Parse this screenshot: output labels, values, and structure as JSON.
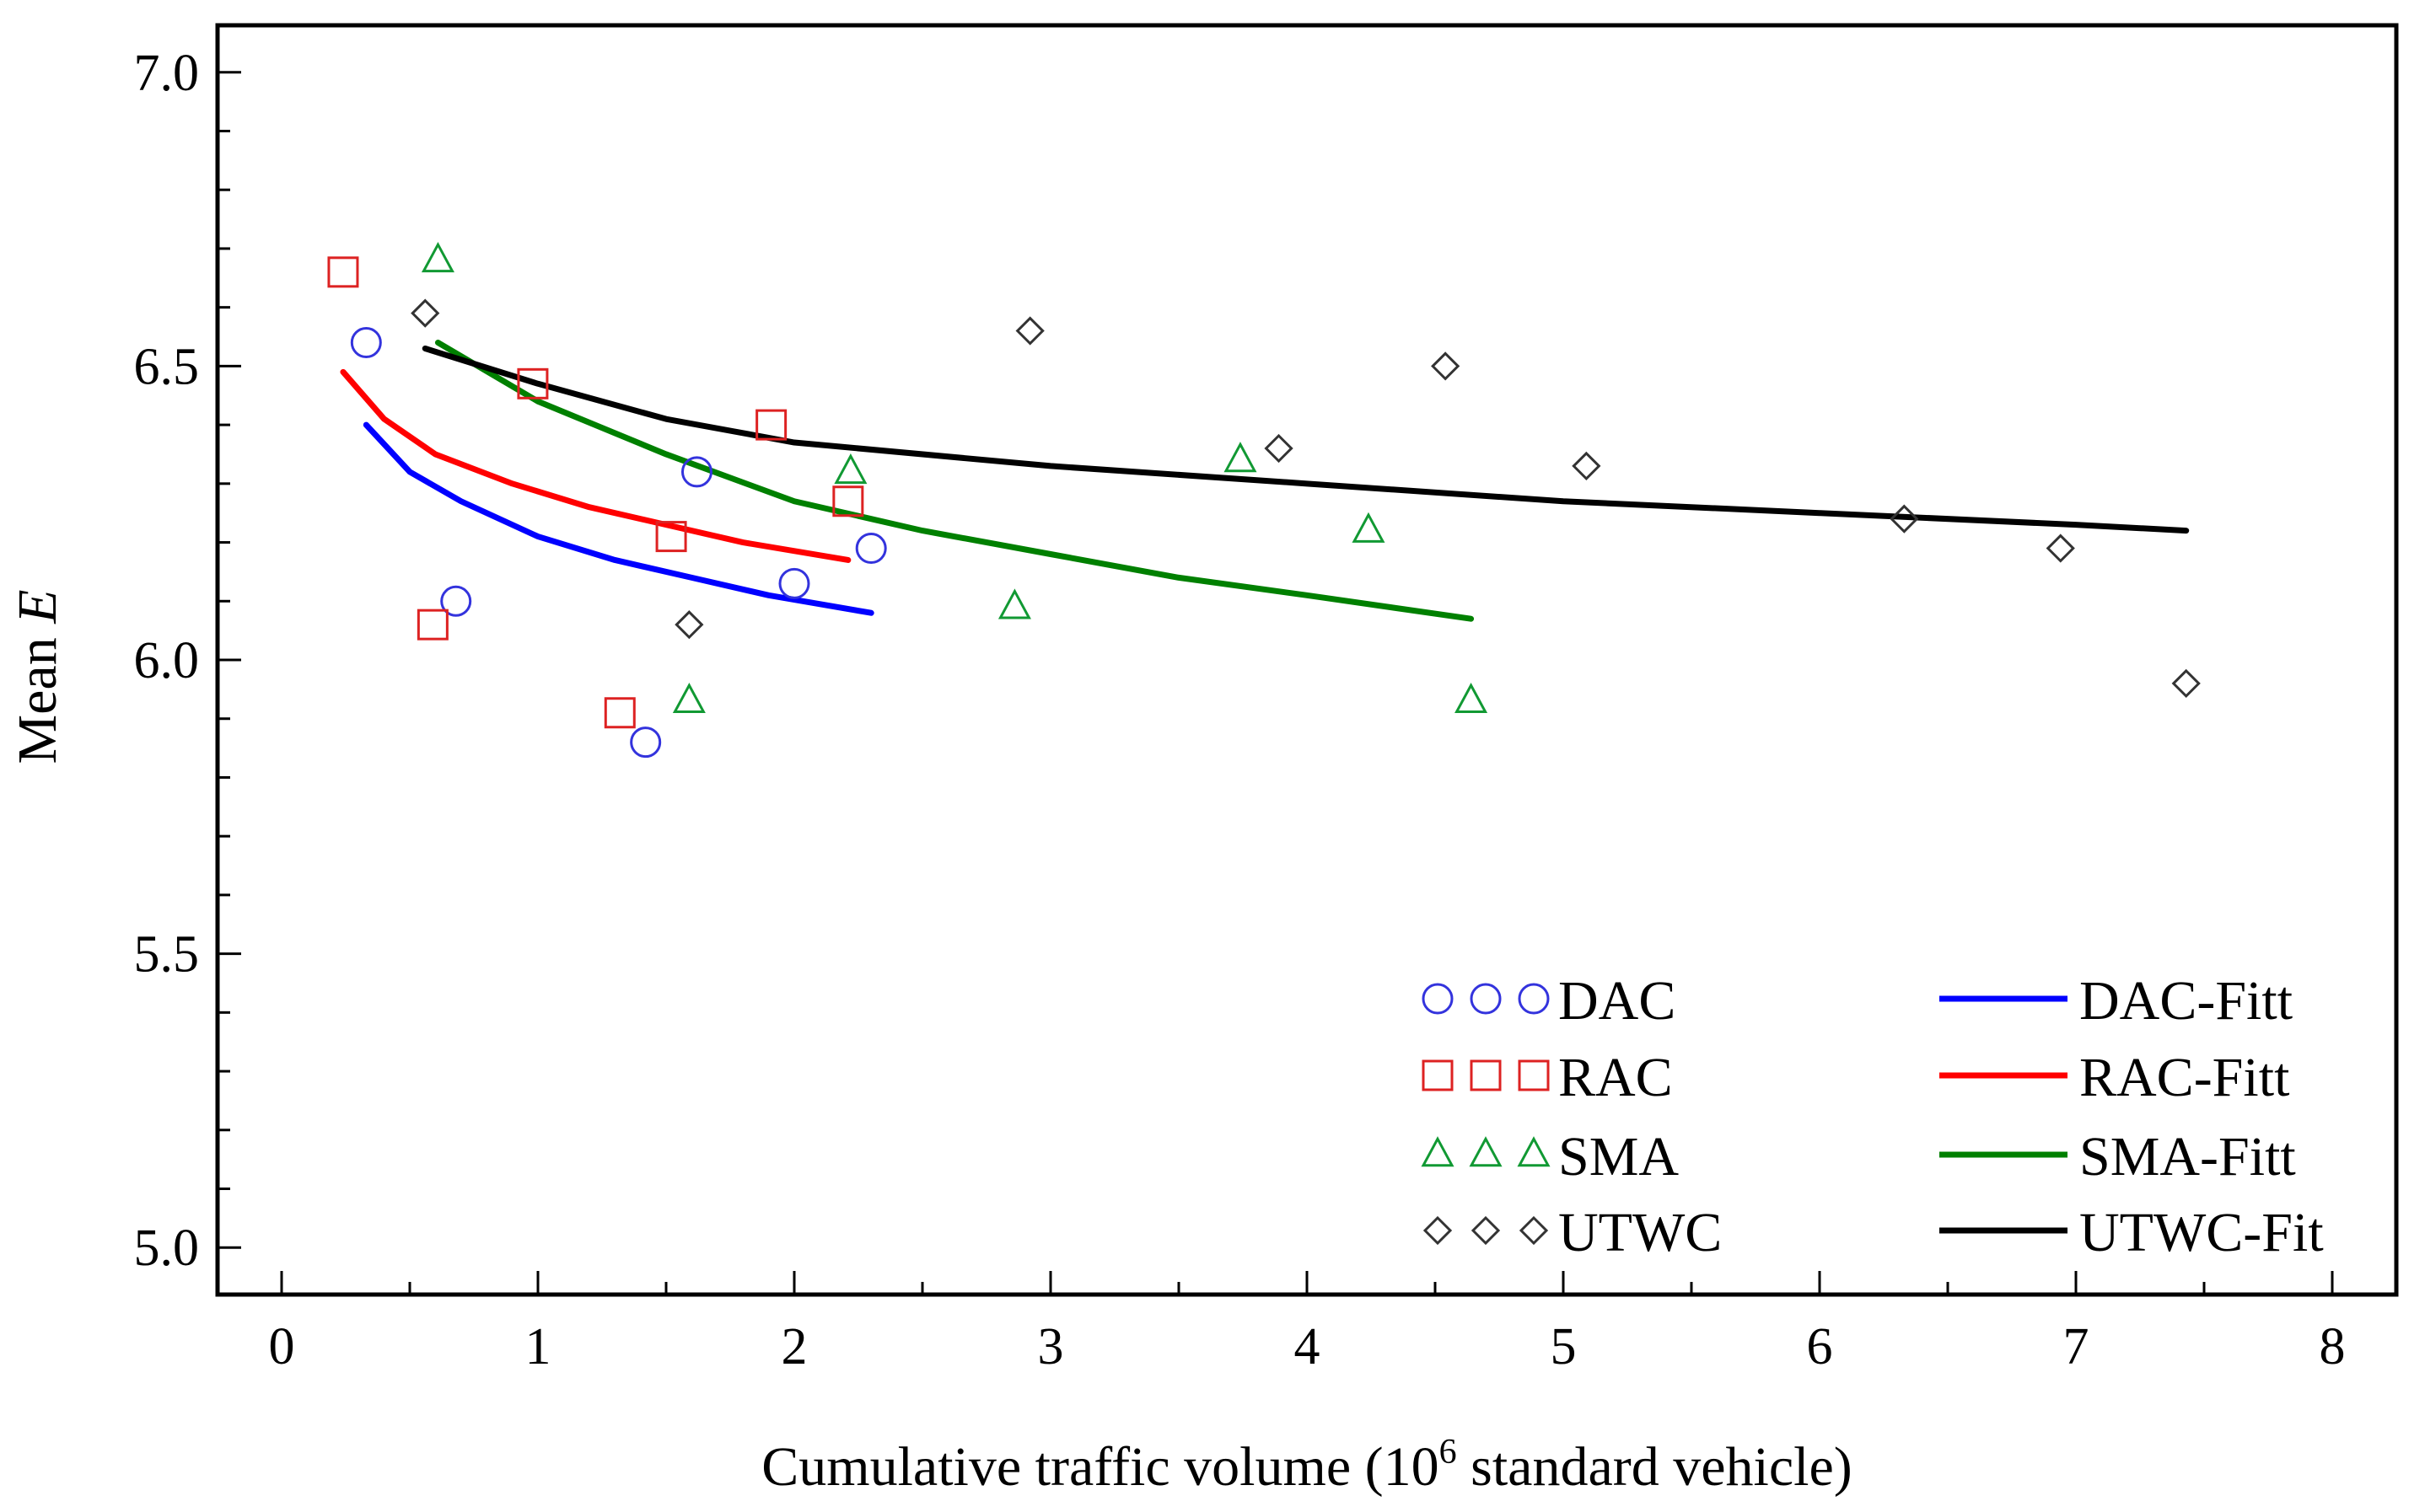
{
  "chart_data": {
    "type": "scatter",
    "title": "",
    "xlabel_prefix": "Cumulative traffic volume (10",
    "xlabel_sup": "6",
    "xlabel_suffix": " standard vehicle)",
    "ylabel_prefix": "Mean ",
    "ylabel_italic": "E",
    "xlim": [
      -0.25,
      8.25
    ],
    "ylim": [
      4.92,
      7.08
    ],
    "xticks": [
      0,
      1,
      2,
      3,
      4,
      5,
      6,
      7,
      8
    ],
    "xtick_labels": [
      "0",
      "1",
      "2",
      "3",
      "4",
      "5",
      "6",
      "7",
      "8"
    ],
    "yticks": [
      5.0,
      5.5,
      6.0,
      6.5,
      7.0
    ],
    "ytick_labels": [
      "5.0",
      "5.5",
      "6.0",
      "6.5",
      "7.0"
    ],
    "grid": false,
    "legend_position": "bottom-right",
    "scatter_series": [
      {
        "name": "DAC",
        "marker": "circle",
        "color": "#3333dd",
        "points": [
          [
            0.33,
            6.54
          ],
          [
            0.68,
            6.1
          ],
          [
            1.42,
            5.86
          ],
          [
            1.62,
            6.32
          ],
          [
            2.0,
            6.13
          ],
          [
            2.3,
            6.19
          ]
        ]
      },
      {
        "name": "RAC",
        "marker": "square",
        "color": "#dd2222",
        "points": [
          [
            0.24,
            6.66
          ],
          [
            0.59,
            6.06
          ],
          [
            0.98,
            6.47
          ],
          [
            1.32,
            5.91
          ],
          [
            1.52,
            6.21
          ],
          [
            1.91,
            6.4
          ],
          [
            2.21,
            6.27
          ]
        ]
      },
      {
        "name": "SMA",
        "marker": "triangle",
        "color": "#119933",
        "points": [
          [
            0.61,
            6.68
          ],
          [
            1.59,
            5.93
          ],
          [
            2.22,
            6.32
          ],
          [
            2.86,
            6.09
          ],
          [
            3.74,
            6.34
          ],
          [
            4.24,
            6.22
          ],
          [
            4.64,
            5.93
          ]
        ]
      },
      {
        "name": "UTWC",
        "marker": "diamond",
        "color": "#333333",
        "points": [
          [
            0.56,
            6.59
          ],
          [
            1.59,
            6.06
          ],
          [
            2.92,
            6.56
          ],
          [
            3.89,
            6.36
          ],
          [
            4.54,
            6.5
          ],
          [
            5.09,
            6.33
          ],
          [
            6.33,
            6.24
          ],
          [
            6.94,
            6.19
          ],
          [
            7.43,
            5.96
          ]
        ]
      }
    ],
    "fit_series": [
      {
        "name": "DAC-Fitt",
        "color": "#0000ff",
        "points": [
          [
            0.33,
            6.4
          ],
          [
            0.5,
            6.32
          ],
          [
            0.7,
            6.27
          ],
          [
            1.0,
            6.21
          ],
          [
            1.3,
            6.17
          ],
          [
            1.6,
            6.14
          ],
          [
            1.9,
            6.11
          ],
          [
            2.3,
            6.08
          ]
        ]
      },
      {
        "name": "RAC-Fitt",
        "color": "#ff0000",
        "points": [
          [
            0.24,
            6.49
          ],
          [
            0.4,
            6.41
          ],
          [
            0.6,
            6.35
          ],
          [
            0.9,
            6.3
          ],
          [
            1.2,
            6.26
          ],
          [
            1.5,
            6.23
          ],
          [
            1.8,
            6.2
          ],
          [
            2.21,
            6.17
          ]
        ]
      },
      {
        "name": "SMA-Fitt",
        "color": "#008000",
        "points": [
          [
            0.61,
            6.54
          ],
          [
            1.0,
            6.44
          ],
          [
            1.5,
            6.35
          ],
          [
            2.0,
            6.27
          ],
          [
            2.5,
            6.22
          ],
          [
            3.0,
            6.18
          ],
          [
            3.5,
            6.14
          ],
          [
            4.0,
            6.11
          ],
          [
            4.64,
            6.07
          ]
        ]
      },
      {
        "name": "UTWC-Fit",
        "color": "#000000",
        "points": [
          [
            0.56,
            6.53
          ],
          [
            1.0,
            6.47
          ],
          [
            1.5,
            6.41
          ],
          [
            2.0,
            6.37
          ],
          [
            3.0,
            6.33
          ],
          [
            4.0,
            6.3
          ],
          [
            5.0,
            6.27
          ],
          [
            6.0,
            6.25
          ],
          [
            7.0,
            6.23
          ],
          [
            7.43,
            6.22
          ]
        ]
      }
    ]
  }
}
